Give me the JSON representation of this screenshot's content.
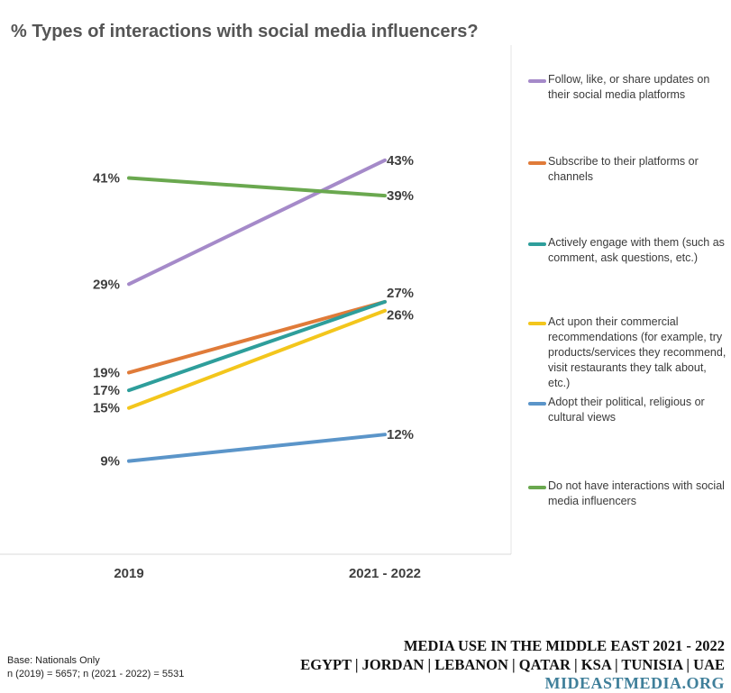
{
  "chart_data": {
    "type": "line",
    "title": "% Types of interactions with social media influencers?",
    "categories": [
      "2019",
      "2021 - 2022"
    ],
    "ylim": [
      0,
      55
    ],
    "grid": false,
    "legend_position": "right",
    "series": [
      {
        "name": "Follow, like, or share updates on their social media platforms",
        "values": [
          29,
          43
        ],
        "labels": [
          "29%",
          "43%"
        ],
        "color": "#a58ac9"
      },
      {
        "name": "Subscribe to their platforms or channels",
        "values": [
          19,
          27
        ],
        "labels": [
          "19%",
          "27%"
        ],
        "color": "#e07b39"
      },
      {
        "name": "Actively engage with them (such as comment, ask questions, etc.)",
        "values": [
          17,
          27
        ],
        "labels": [
          "17%",
          "27%"
        ],
        "color": "#2e9e9b"
      },
      {
        "name": "Act upon their commercial recommendations (for example, try products/services they recommend, visit restaurants they talk about, etc.)",
        "values": [
          15,
          26
        ],
        "labels": [
          "15%",
          "26%"
        ],
        "color": "#f3c61c"
      },
      {
        "name": "Adopt their political, religious or cultural views",
        "values": [
          9,
          12
        ],
        "labels": [
          "9%",
          "12%"
        ],
        "color": "#5b95c9"
      },
      {
        "name": "Do not have interactions with social media influencers",
        "values": [
          41,
          39
        ],
        "labels": [
          "41%",
          "39%"
        ],
        "color": "#6aa84f"
      }
    ]
  },
  "footer": {
    "base_line1": "Base: Nationals Only",
    "base_line2": "n (2019) = 5657; n  (2021 - 2022) = 5531",
    "brand_line1": "MEDIA USE IN THE MIDDLE EAST 2021 - 2022",
    "brand_line2": "EGYPT | JORDAN | LEBANON | QATAR | KSA | TUNISIA | UAE",
    "brand_site": "MIDEASTMEDIA.ORG"
  }
}
